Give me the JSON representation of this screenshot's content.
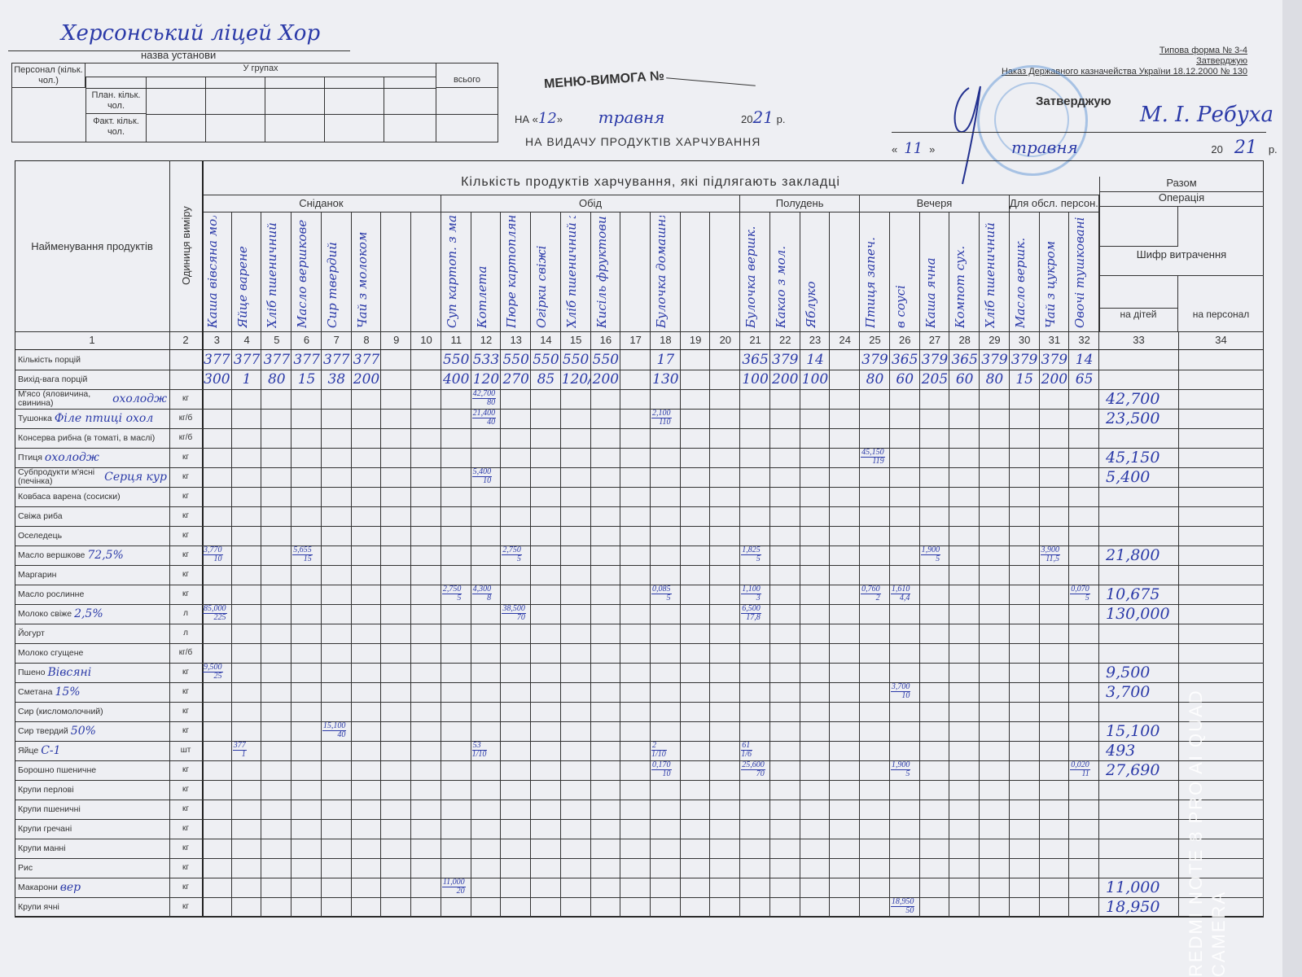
{
  "header": {
    "institution_handwritten": "Херсонський ліцей Хор",
    "institution_caption": "назва установи",
    "staff_table": {
      "staff_label": "Персонал (кільк. чол.)",
      "groups_label": "У групах",
      "total_label": "всього",
      "plan_label": "План. кільк. чол.",
      "fact_label": "Факт. кільк. чол."
    },
    "title": "МЕНЮ-ВИМОГА №",
    "date_prefix": "НА «",
    "date_day": "12",
    "date_sep": "»",
    "date_month": "травня",
    "date_year_prefix": "20",
    "date_year": "21",
    "date_suffix": "р.",
    "subtitle": "НА ВИДАЧУ ПРОДУКТІВ ХАРЧУВАННЯ",
    "form_no": "Типова форма № 3-4",
    "form_approve": "Затверджую",
    "form_order": "Наказ Державного казначейства України 18.12.2000 № 130",
    "approve_label": "Затверджую",
    "approver_name": "М. І. Ребуха",
    "approve_day": "11",
    "approve_month": "травня",
    "approve_year_prefix": "20",
    "approve_year": "21",
    "approve_suffix": "р."
  },
  "table": {
    "name_header": "Найменування продуктів",
    "unit_header": "Одиниця виміру",
    "quantity_header": "Кількість продуктів харчування, які підлягають закладці",
    "total_header": "Разом",
    "operation_header": "Операція",
    "code_header": "Шифр витрачення",
    "children_header": "на дітей",
    "staff_header": "на персонал",
    "meals": [
      {
        "label": "Сніданок",
        "from": 3,
        "to": 10
      },
      {
        "label": "Обід",
        "from": 11,
        "to": 20
      },
      {
        "label": "Полудень",
        "from": 21,
        "to": 24
      },
      {
        "label": "Вечеря",
        "from": 25,
        "to": 29
      },
      {
        "label": "Для обсл. персон.",
        "from": 30,
        "to": 32
      }
    ],
    "column_numbers": [
      "1",
      "2",
      "3",
      "4",
      "5",
      "6",
      "7",
      "8",
      "9",
      "10",
      "11",
      "12",
      "13",
      "14",
      "15",
      "16",
      "17",
      "18",
      "19",
      "20",
      "21",
      "22",
      "23",
      "24",
      "25",
      "26",
      "27",
      "28",
      "29",
      "30",
      "31",
      "32",
      "33",
      "34"
    ],
    "dishes": {
      "3": "Каша вівсяна молочна",
      "4": "Яйце варене",
      "5": "Хліб пшеничний",
      "6": "Масло вершкове",
      "7": "Сир твердий",
      "8": "Чай з молоком",
      "11": "Суп картоп. з макарон. вир.",
      "12": "Котлета",
      "13": "Пюре картопляне",
      "14": "Огірки свіжі",
      "15": "Хліб пшеничний житній",
      "16": "Кисіль фруктовий",
      "18": "Булочка домашня",
      "21": "Булочка вершк.",
      "22": "Какао з мол.",
      "23": "Яблуко",
      "25": "Птиця запеч.",
      "26": "в соусі",
      "27": "Каша ячна",
      "28": "Компот сух.",
      "29": "Хліб пшеничний",
      "30": "Масло вершк.",
      "31": "Чай з цукром",
      "32": "Овочі тушковані"
    },
    "portions_label": "Кількість порцій",
    "portions": {
      "3": "377",
      "4": "377",
      "5": "377",
      "6": "377",
      "7": "377",
      "8": "377",
      "11": "550",
      "12": "533",
      "13": "550",
      "14": "550",
      "15": "550",
      "16": "550",
      "18": "17",
      "21": "365",
      "22": "379",
      "23": "14",
      "25": "379",
      "26": "365",
      "27": "379",
      "28": "365",
      "29": "379",
      "30": "379",
      "31": "379",
      "32": "14"
    },
    "weight_label": "Вихід-вага порцій",
    "weights": {
      "3": "300",
      "4": "1",
      "5": "80",
      "6": "15",
      "7": "38",
      "8": "200",
      "11": "400",
      "12": "120",
      "13": "270",
      "14": "85",
      "15": "120/100",
      "16": "200",
      "18": "130",
      "21": "100",
      "22": "200",
      "23": "100",
      "25": "80",
      "26": "60",
      "27": "205",
      "28": "60",
      "29": "80",
      "30": "15",
      "31": "200",
      "32": "65"
    },
    "products": [
      {
        "name": "М'ясо (яловичина, свинина)",
        "unit": "кг",
        "note": "охолодж",
        "cells": {
          "12": [
            "42,700",
            "80"
          ]
        },
        "total": "42,700"
      },
      {
        "name": "Тушонка",
        "unit": "кг/б",
        "note": "Філе птиці охол",
        "cells": {
          "12": [
            "21,400",
            "40"
          ],
          "18": [
            "2,100",
            "110"
          ]
        },
        "total": "23,500"
      },
      {
        "name": "Консерва рибна (в томаті, в маслі)",
        "unit": "кг/б",
        "note": "",
        "cells": {},
        "total": ""
      },
      {
        "name": "Птиця",
        "unit": "кг",
        "note": "охолодж",
        "cells": {
          "25": [
            "45,150",
            "119"
          ]
        },
        "total": "45,150"
      },
      {
        "name": "Субпродукти м'ясні (печінка)",
        "unit": "кг",
        "note": "Серця кур",
        "cells": {
          "12": [
            "5,400",
            "10"
          ]
        },
        "total": "5,400"
      },
      {
        "name": "Ковбаса варена (сосиски)",
        "unit": "кг",
        "note": "",
        "cells": {},
        "total": ""
      },
      {
        "name": "Свіжа риба",
        "unit": "кг",
        "note": "",
        "cells": {},
        "total": ""
      },
      {
        "name": "Оселедець",
        "unit": "кг",
        "note": "",
        "cells": {},
        "total": ""
      },
      {
        "name": "Масло вершкове",
        "unit": "кг",
        "note": "72,5%",
        "cells": {
          "3": [
            "3,770",
            "10"
          ],
          "6": [
            "5,655",
            "15"
          ],
          "13": [
            "2,750",
            "5"
          ],
          "21": [
            "1,825",
            "5"
          ],
          "27": [
            "1,900",
            "5"
          ],
          "31": [
            "3,900",
            "11,5"
          ]
        },
        "total": "21,800"
      },
      {
        "name": "Маргарин",
        "unit": "кг",
        "note": "",
        "cells": {},
        "total": ""
      },
      {
        "name": "Масло рослинне",
        "unit": "кг",
        "note": "",
        "cells": {
          "11": [
            "2,750",
            "5"
          ],
          "12": [
            "4,300",
            "8"
          ],
          "18": [
            "0,085",
            "5"
          ],
          "21": [
            "1,100",
            "3"
          ],
          "25": [
            "0,760",
            "2"
          ],
          "26": [
            "1,610",
            "4,4"
          ],
          "32": [
            "0,070",
            "5"
          ]
        },
        "total": "10,675"
      },
      {
        "name": "Молоко свіже",
        "unit": "л",
        "note": "2,5%",
        "cells": {
          "3": [
            "85,000",
            "225"
          ],
          "13": [
            "38,500",
            "70"
          ],
          "21": [
            "6,500",
            "17,8"
          ]
        },
        "total": "130,000"
      },
      {
        "name": "Йогурт",
        "unit": "л",
        "note": "",
        "cells": {},
        "total": ""
      },
      {
        "name": "Молоко сгущене",
        "unit": "кг/б",
        "note": "",
        "cells": {},
        "total": ""
      },
      {
        "name": "Пшено",
        "unit": "кг",
        "note": "Вівсяні",
        "cells": {
          "3": [
            "9,500",
            "25"
          ]
        },
        "total": "9,500"
      },
      {
        "name": "Сметана",
        "unit": "кг",
        "note": "15%",
        "cells": {
          "26": [
            "3,700",
            "10"
          ]
        },
        "total": "3,700"
      },
      {
        "name": "Сир (кисломолочний)",
        "unit": "кг",
        "note": "",
        "cells": {},
        "total": ""
      },
      {
        "name": "Сир твердий",
        "unit": "кг",
        "note": "50%",
        "cells": {
          "7": [
            "15,100",
            "40"
          ]
        },
        "total": "15,100"
      },
      {
        "name": "Яйце",
        "unit": "шт",
        "note": "С-1",
        "cells": {
          "4": [
            "377",
            "1"
          ],
          "12": [
            "53",
            "1/10"
          ],
          "18": [
            "2",
            "1/10"
          ],
          "21": [
            "61",
            "1/6"
          ]
        },
        "total": "493"
      },
      {
        "name": "Борошно пшеничне",
        "unit": "кг",
        "note": "",
        "cells": {
          "18": [
            "0,170",
            "10"
          ],
          "21": [
            "25,600",
            "70"
          ],
          "26": [
            "1,900",
            "5"
          ],
          "32": [
            "0,020",
            "11"
          ]
        },
        "total": "27,690"
      },
      {
        "name": "Крупи перлові",
        "unit": "кг",
        "note": "",
        "cells": {},
        "total": ""
      },
      {
        "name": "Крупи пшеничні",
        "unit": "кг",
        "note": "",
        "cells": {},
        "total": ""
      },
      {
        "name": "Крупи гречані",
        "unit": "кг",
        "note": "",
        "cells": {},
        "total": ""
      },
      {
        "name": "Крупи манні",
        "unit": "кг",
        "note": "",
        "cells": {},
        "total": ""
      },
      {
        "name": "Рис",
        "unit": "кг",
        "note": "",
        "cells": {},
        "total": ""
      },
      {
        "name": "Макарони",
        "unit": "кг",
        "note": "вер",
        "cells": {
          "11": [
            "11,000",
            "20"
          ]
        },
        "total": "11,000"
      },
      {
        "name": "Крупи ячні",
        "unit": "кг",
        "note": "",
        "cells": {
          "26": [
            "18,950",
            "50"
          ]
        },
        "total": "18,950"
      }
    ]
  },
  "watermark": "REDMI NOTE 8 PRO AI QUAD CAMERA",
  "colors": {
    "ink": "#2b3aa8",
    "paper": "#eeeff3",
    "stamp": "#508cd2"
  }
}
